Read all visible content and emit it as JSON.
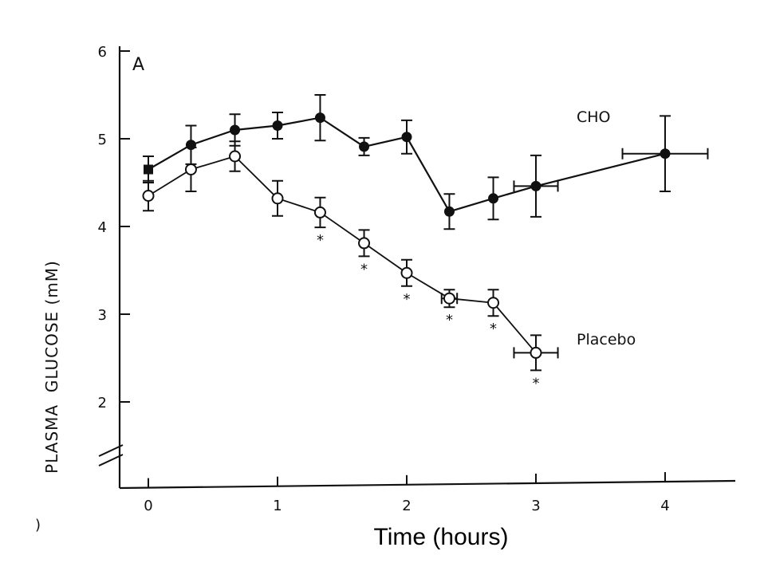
{
  "chart_data": {
    "type": "line",
    "panel_label": "A",
    "xlabel": "Time (hours)",
    "ylabel": "PLASMA  GLUCOSE (mM)",
    "xlim": [
      -0.05,
      4.55
    ],
    "ylim": [
      1.0,
      6.0
    ],
    "x_ticks": [
      0,
      1,
      2,
      3,
      4
    ],
    "x_tick_labels": [
      "0",
      "1",
      "2",
      "3",
      "4"
    ],
    "y_ticks": [
      2,
      3,
      4,
      5,
      6
    ],
    "y_tick_labels": [
      "2",
      "3",
      "4",
      "5",
      "6"
    ],
    "axis_break": true,
    "left_edge_mark": ")",
    "series": [
      {
        "name": "CHO",
        "marker": "filled-circle",
        "x": [
          0.0,
          0.33,
          0.67,
          1.0,
          1.33,
          1.67,
          2.0,
          2.33,
          2.67,
          3.0,
          4.0
        ],
        "y": [
          4.65,
          4.93,
          5.1,
          5.15,
          5.24,
          4.91,
          5.02,
          4.17,
          4.32,
          4.46,
          4.83
        ],
        "yerr": [
          0.15,
          0.22,
          0.18,
          0.15,
          0.26,
          0.1,
          0.19,
          0.2,
          0.24,
          0.35,
          0.43
        ],
        "xerr": [
          0,
          0,
          0,
          0,
          0,
          0,
          0,
          0,
          0,
          0.17,
          0.33
        ]
      },
      {
        "name": "Placebo",
        "marker": "open-circle",
        "x": [
          0.0,
          0.33,
          0.67,
          1.0,
          1.33,
          1.67,
          2.0,
          2.33,
          2.67,
          3.0
        ],
        "y": [
          4.35,
          4.65,
          4.8,
          4.32,
          4.16,
          3.81,
          3.47,
          3.18,
          3.13,
          2.56
        ],
        "yerr": [
          0.17,
          0.25,
          0.17,
          0.2,
          0.17,
          0.15,
          0.15,
          0.1,
          0.15,
          0.2
        ],
        "xerr": [
          0,
          0,
          0,
          0,
          0,
          0,
          0,
          0.06,
          0,
          0.17
        ],
        "significance": [
          "",
          "",
          "",
          "",
          "*",
          "*",
          "*",
          "*",
          "*",
          "*"
        ]
      }
    ]
  }
}
